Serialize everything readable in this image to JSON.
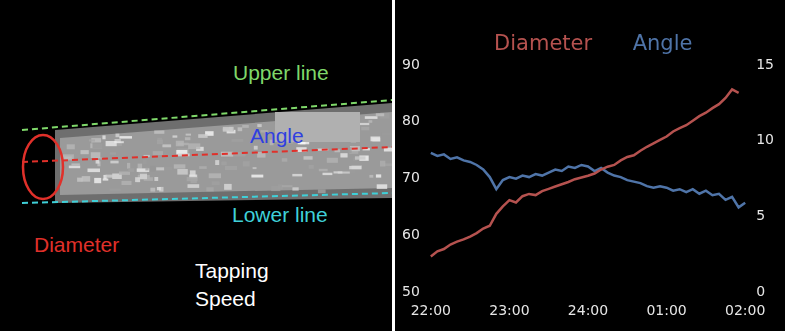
{
  "annotated_image": {
    "labels": [
      {
        "text": "Upper line",
        "color": "#7fd86a"
      },
      {
        "text": "Angle",
        "color": "#2f3fe0"
      },
      {
        "text": "Lower line",
        "color": "#3fd0d8"
      },
      {
        "text": "Diameter",
        "color": "#e0302a"
      },
      {
        "text": "Tapping\nSpeed",
        "color": "#ffffff"
      }
    ]
  },
  "chart_data": {
    "type": "line",
    "categories": [
      "22:00",
      null,
      null,
      null,
      null,
      null,
      null,
      null,
      null,
      null,
      null,
      null,
      "23:00",
      null,
      null,
      null,
      null,
      null,
      null,
      null,
      null,
      null,
      null,
      null,
      "24:00",
      null,
      null,
      null,
      null,
      null,
      null,
      null,
      null,
      null,
      null,
      null,
      "01:00",
      null,
      null,
      null,
      null,
      null,
      null,
      null,
      null,
      null,
      null,
      null,
      "02:00"
    ],
    "series": [
      {
        "name": "Diameter",
        "color": "#b5524f",
        "values": [
          56.3,
          57.2,
          57.6,
          58.4,
          58.9,
          59.3,
          59.8,
          60.4,
          61.2,
          61.7,
          63.8,
          65.1,
          66.2,
          65.8,
          66.9,
          67.3,
          67.1,
          67.8,
          68.2,
          68.6,
          69.0,
          69.4,
          69.9,
          70.2,
          70.5,
          70.9,
          71.6,
          72.1,
          72.4,
          73.2,
          73.8,
          74.1,
          74.9,
          75.6,
          76.2,
          76.8,
          77.4,
          78.3,
          78.9,
          79.4,
          80.2,
          81.0,
          81.6,
          82.4,
          83.1,
          84.2,
          85.7,
          85.1,
          null
        ]
      },
      {
        "name": "Angle",
        "color": "#4f74a8",
        "axis": "y2",
        "values": [
          9.2,
          9.0,
          9.1,
          8.8,
          8.9,
          8.7,
          8.6,
          8.4,
          8.1,
          7.6,
          6.8,
          7.4,
          7.6,
          7.5,
          7.7,
          7.6,
          7.8,
          7.7,
          7.9,
          8.1,
          8.0,
          8.3,
          8.2,
          8.4,
          8.3,
          8.0,
          8.2,
          7.9,
          7.7,
          7.6,
          7.4,
          7.3,
          7.2,
          7.0,
          6.9,
          7.0,
          6.9,
          6.7,
          6.8,
          6.6,
          6.8,
          6.5,
          6.7,
          6.4,
          6.5,
          6.1,
          6.3,
          5.6,
          5.9
        ]
      }
    ],
    "ylim": [
      50,
      90
    ],
    "yticks": [
      50,
      60,
      70,
      80,
      90
    ],
    "y2lim": [
      0,
      15
    ],
    "y2ticks": [
      0,
      5,
      10,
      15
    ],
    "grid": false,
    "legend": "top"
  }
}
